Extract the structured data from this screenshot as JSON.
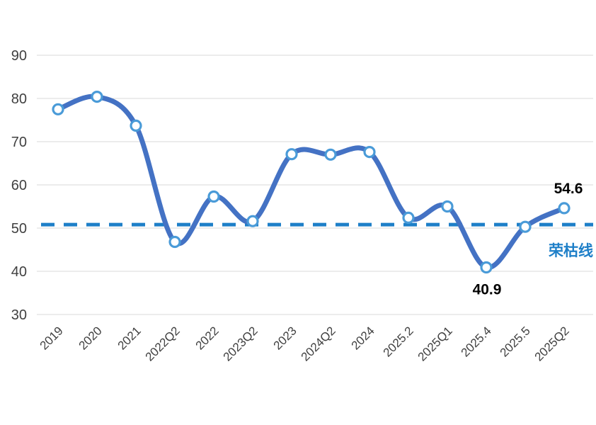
{
  "chart_data": {
    "type": "line",
    "title": "",
    "categories": [
      "2019",
      "2020",
      "2021",
      "2022Q2",
      "2022",
      "2023Q2",
      "2023",
      "2024Q2",
      "2024",
      "2025.2",
      "2025Q1",
      "2025.4",
      "2025.5",
      "2025Q2"
    ],
    "values": [
      77.5,
      80.4,
      73.7,
      46.8,
      57.3,
      51.6,
      67.1,
      67.0,
      67.6,
      52.4,
      55.0,
      40.9,
      50.3,
      54.6
    ],
    "ylim": [
      30,
      90
    ],
    "yticks": [
      90,
      80,
      70,
      60,
      50,
      40,
      30
    ],
    "grid": "horizontal-only",
    "legend": false,
    "xlabel": "",
    "ylabel": "",
    "x_label_rotation": -45,
    "reference_line": {
      "value": 50.8,
      "label": "荣枯线",
      "style": "dashed"
    },
    "point_labels": [
      {
        "index": 13,
        "text": "54.6",
        "position": "above"
      },
      {
        "index": 11,
        "text": "40.9",
        "position": "below"
      }
    ],
    "colors": {
      "line": "#4472C4",
      "marker_fill": "#ffffff",
      "marker_stroke": "#4A9BD8",
      "reference": "#1E7FC8",
      "reference_label": "#1E7FC8",
      "annotation": "#000000",
      "tick_text": "#404040",
      "grid": "#d9d9d9",
      "background": "#ffffff"
    }
  }
}
